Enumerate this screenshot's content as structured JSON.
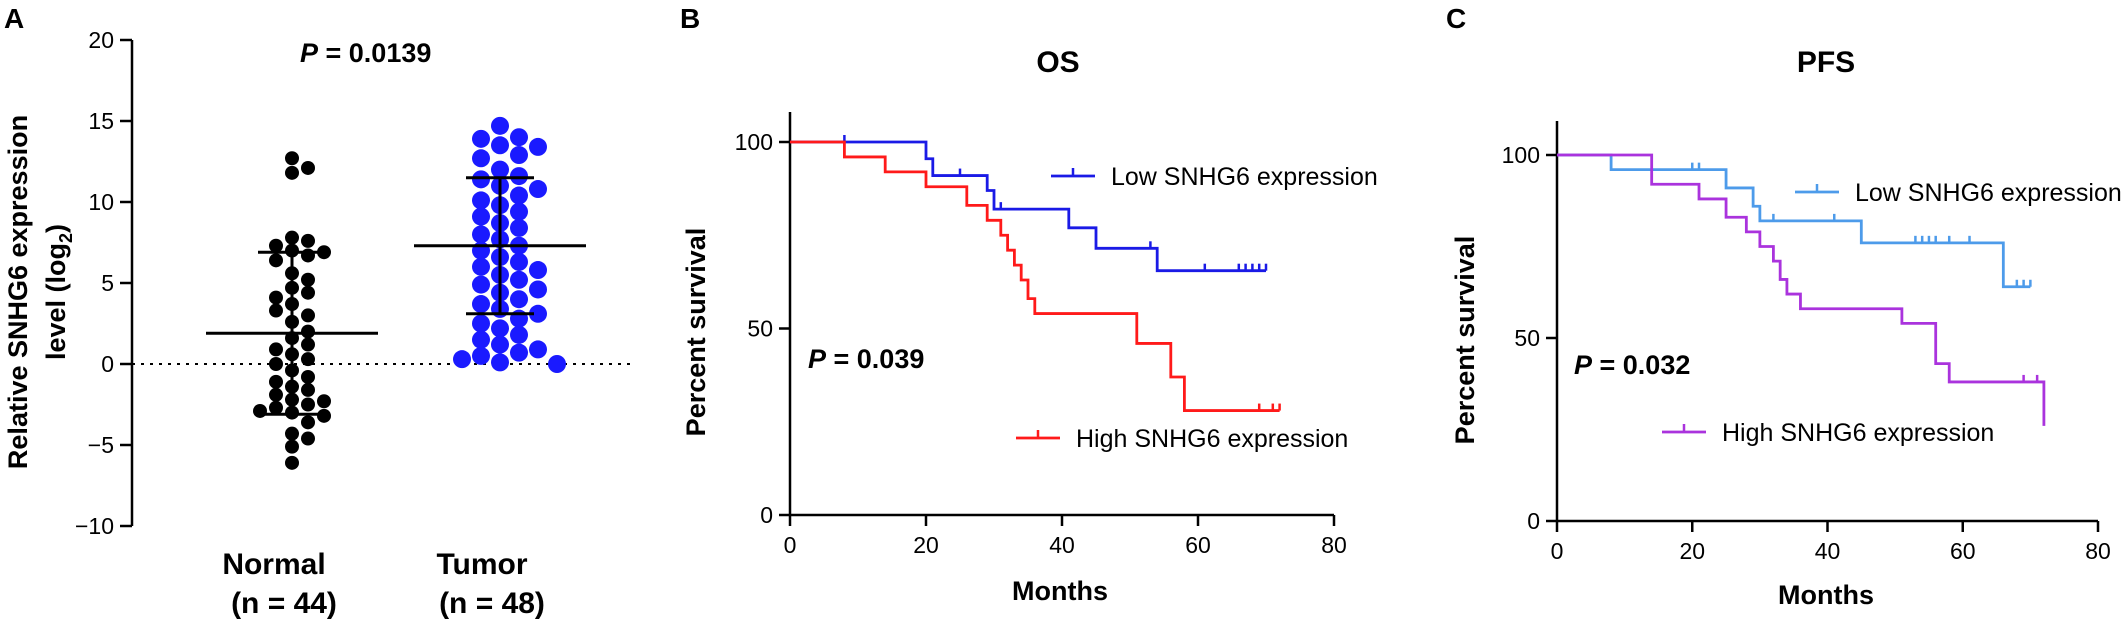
{
  "figure": {
    "colors": {
      "axis": "#000000",
      "normal_dot": "#000000",
      "tumor_dot": "#1a1aff",
      "os_low": "#1a1ae6",
      "os_high": "#ff1a1a",
      "pfs_low": "#4d9bea",
      "pfs_high": "#aa33dd"
    }
  },
  "chart_data": [
    {
      "id": "A",
      "type": "scatter",
      "panel_letter": "A",
      "title": "",
      "ylabel_main": "Relative SNHG6 expression",
      "ylabel_sub": "level (log",
      "ylabel_subscript": "2",
      "ylabel_close": ")",
      "ylim": [
        -10,
        20
      ],
      "yticks": [
        "20",
        "15",
        "10",
        "5",
        "0",
        "−5",
        "−10"
      ],
      "ytick_values": [
        20,
        15,
        10,
        5,
        0,
        -5,
        -10
      ],
      "pvalue_italic": "P",
      "pvalue_rest": " = 0.0139",
      "reference_line": 0,
      "groups": [
        {
          "name": "Normal",
          "n_label": "(n = 44)",
          "color": "#000000",
          "mean": 1.9,
          "sd_low": -3.1,
          "sd_high": 6.9,
          "points": [
            12.7,
            12.1,
            11.8,
            7.8,
            7.6,
            7.3,
            7.0,
            6.9,
            6.7,
            6.4,
            5.6,
            5.2,
            4.7,
            4.4,
            4.1,
            3.7,
            3.0,
            2.6,
            2.0,
            1.6,
            1.2,
            0.9,
            0.6,
            0.3,
            0.0,
            -0.4,
            -0.8,
            -1.1,
            -1.4,
            -1.6,
            -1.9,
            -2.2,
            -2.3,
            -2.5,
            -2.7,
            -2.9,
            -3.0,
            -3.2,
            -3.6,
            -4.3,
            -4.6,
            -5.1,
            -6.1,
            3.3
          ]
        },
        {
          "name": "Tumor",
          "n_label": "(n = 48)",
          "color": "#1a1aff",
          "mean": 7.3,
          "sd_low": 3.1,
          "sd_high": 11.5,
          "points": [
            14.7,
            14.0,
            13.9,
            13.5,
            13.4,
            12.9,
            12.7,
            12.0,
            11.6,
            11.4,
            11.0,
            10.8,
            10.4,
            10.1,
            9.8,
            9.4,
            9.1,
            8.7,
            8.4,
            8.0,
            7.7,
            7.3,
            7.0,
            6.6,
            6.3,
            6.0,
            5.8,
            5.5,
            5.2,
            4.9,
            4.6,
            4.4,
            4.0,
            3.7,
            3.4,
            3.1,
            2.8,
            2.5,
            2.2,
            1.8,
            1.5,
            1.2,
            0.9,
            0.7,
            0.5,
            0.3,
            0.1,
            0.0
          ]
        }
      ]
    },
    {
      "id": "B",
      "type": "line",
      "panel_letter": "B",
      "title": "OS",
      "xlabel": "Months",
      "ylabel": "Percent survival",
      "xlim": [
        0,
        80
      ],
      "ylim": [
        0,
        100
      ],
      "xticks": [
        "0",
        "20",
        "40",
        "60",
        "80"
      ],
      "xtick_values": [
        0,
        20,
        40,
        60,
        80
      ],
      "yticks": [
        "0",
        "50",
        "100"
      ],
      "ytick_values": [
        0,
        50,
        100
      ],
      "pvalue_italic": "P",
      "pvalue_rest": " = 0.039",
      "series": [
        {
          "name": "Low SNHG6 expression",
          "color": "#1a1ae6",
          "x": [
            0,
            20,
            21,
            29,
            30,
            35,
            41,
            45,
            54,
            70
          ],
          "y": [
            100,
            95.5,
            91,
            87,
            82,
            82,
            77,
            71.5,
            65.5,
            65.5
          ],
          "censor": [
            [
              8,
              100
            ],
            [
              25,
              91
            ],
            [
              31,
              82
            ],
            [
              53,
              71.5
            ],
            [
              61,
              65.5
            ],
            [
              66,
              65.5
            ],
            [
              67,
              65.5
            ],
            [
              68,
              65.5
            ],
            [
              69,
              65.5
            ],
            [
              70,
              65.5
            ]
          ]
        },
        {
          "name": "High SNHG6 expression",
          "color": "#ff1a1a",
          "x": [
            0,
            8,
            14,
            20,
            26,
            29,
            31,
            32,
            33,
            34,
            35,
            36,
            51,
            56,
            58,
            72
          ],
          "y": [
            100,
            96,
            92,
            88,
            83,
            79,
            75,
            71,
            67,
            63,
            58,
            54,
            46,
            37,
            28,
            28
          ],
          "censor": [
            [
              69,
              28
            ],
            [
              71,
              28
            ],
            [
              72,
              28
            ]
          ]
        }
      ]
    },
    {
      "id": "C",
      "type": "line",
      "panel_letter": "C",
      "title": "PFS",
      "xlabel": "Months",
      "ylabel": "Percent survival",
      "xlim": [
        0,
        80
      ],
      "ylim": [
        0,
        100
      ],
      "xticks": [
        "0",
        "20",
        "40",
        "60",
        "80"
      ],
      "xtick_values": [
        0,
        20,
        40,
        60,
        80
      ],
      "yticks": [
        "0",
        "50",
        "100"
      ],
      "ytick_values": [
        0,
        50,
        100
      ],
      "pvalue_italic": "P",
      "pvalue_rest": " = 0.032",
      "series": [
        {
          "name": "Low SNHG6 expression",
          "color": "#4d9bea",
          "x": [
            0,
            8,
            25,
            29,
            30,
            45,
            66,
            70
          ],
          "y": [
            100,
            96,
            91,
            86,
            82,
            76,
            64,
            64
          ],
          "censor": [
            [
              20,
              96
            ],
            [
              21,
              96
            ],
            [
              32,
              82
            ],
            [
              41,
              82
            ],
            [
              53,
              76
            ],
            [
              54,
              76
            ],
            [
              55,
              76
            ],
            [
              56,
              76
            ],
            [
              58,
              76
            ],
            [
              61,
              76
            ],
            [
              68,
              64
            ],
            [
              69,
              64
            ],
            [
              70,
              64
            ]
          ]
        },
        {
          "name": "High SNHG6 expression",
          "color": "#aa33dd",
          "x": [
            0,
            14,
            21,
            25,
            28,
            30,
            32,
            33,
            34,
            36,
            51,
            56,
            58,
            72
          ],
          "y": [
            100,
            92,
            88,
            83,
            79,
            75,
            71,
            66,
            62,
            58,
            54,
            43,
            38,
            26
          ],
          "censor": [
            [
              69,
              38
            ],
            [
              71,
              38
            ]
          ]
        }
      ]
    }
  ]
}
